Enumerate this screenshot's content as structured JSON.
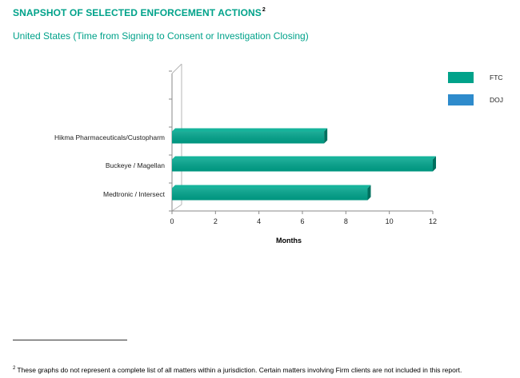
{
  "header": {
    "title": "SNAPSHOT OF SELECTED ENFORCEMENT ACTIONS",
    "title_footnote_ref": "2",
    "subtitle": "United States (Time from Signing to Consent or Investigation Closing)"
  },
  "chart_data": {
    "type": "bar",
    "orientation": "horizontal",
    "categories": [
      "Hikma Pharmaceuticals/Custopharm",
      "Buckeye / Magellan",
      "Medtronic / Intersect"
    ],
    "series": [
      {
        "name": "FTC",
        "color": "#00a28a",
        "values": [
          7,
          12,
          9
        ]
      },
      {
        "name": "DOJ",
        "color": "#2e8bcc",
        "values": [
          null,
          null,
          null
        ]
      }
    ],
    "xlabel": "Months",
    "ylabel": "",
    "xlim": [
      0,
      12
    ],
    "xticks": [
      0,
      2,
      4,
      6,
      8,
      10,
      12
    ],
    "grid": false,
    "legend": [
      "FTC",
      "DOJ"
    ],
    "legend_position": "right"
  },
  "footnote": {
    "marker": "2",
    "text": "These graphs do not represent a complete list of all matters within a jurisdiction. Certain matters involving Firm clients are not included in this report."
  }
}
